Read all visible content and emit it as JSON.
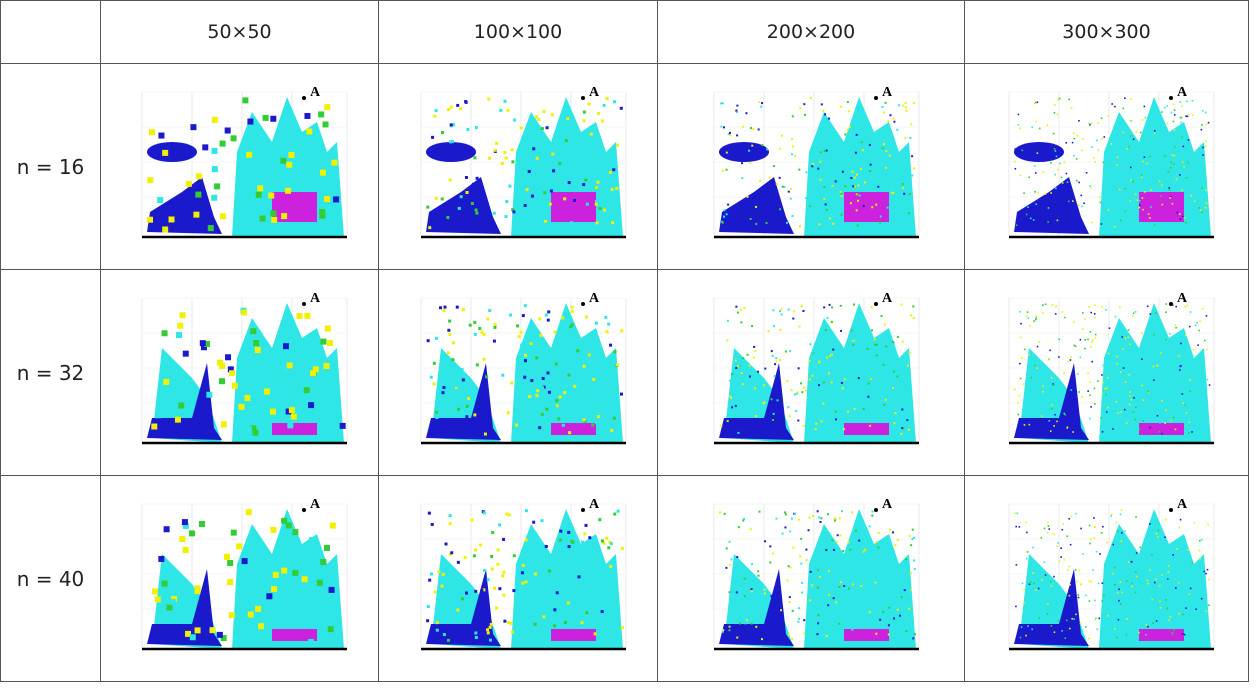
{
  "table": {
    "columns": [
      "50×50",
      "100×100",
      "200×200",
      "300×300"
    ],
    "rows": [
      {
        "label": "n = 16"
      },
      {
        "label": "n = 32"
      },
      {
        "label": "n = 40"
      }
    ],
    "panel_label": "A"
  }
}
